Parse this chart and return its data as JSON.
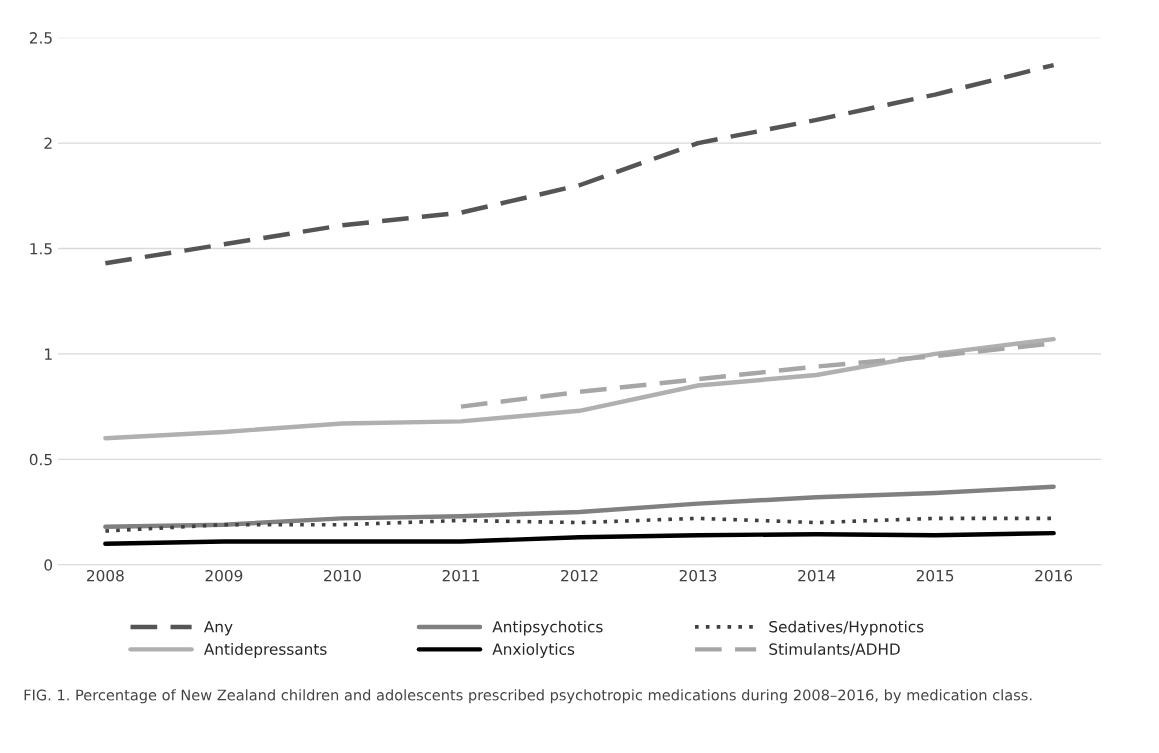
{
  "chart_data": {
    "type": "line",
    "categories": [
      "2008",
      "2009",
      "2010",
      "2011",
      "2012",
      "2013",
      "2014",
      "2015",
      "2016"
    ],
    "series": [
      {
        "name": "Any",
        "color": "#555555",
        "line_style": "dashed",
        "values": [
          1.43,
          1.52,
          1.61,
          1.67,
          1.8,
          2.0,
          2.11,
          2.23,
          2.37
        ]
      },
      {
        "name": "Antidepressants",
        "color": "#b0b0b0",
        "line_style": "solid",
        "values": [
          0.6,
          0.63,
          0.67,
          0.68,
          0.73,
          0.85,
          0.9,
          1.0,
          1.07
        ]
      },
      {
        "name": "Antipsychotics",
        "color": "#808080",
        "line_style": "solid",
        "values": [
          0.18,
          0.19,
          0.22,
          0.23,
          0.25,
          0.29,
          0.32,
          0.34,
          0.37
        ]
      },
      {
        "name": "Anxiolytics",
        "color": "#000000",
        "line_style": "solid",
        "values": [
          0.1,
          0.11,
          0.11,
          0.11,
          0.13,
          0.14,
          0.145,
          0.14,
          0.15
        ]
      },
      {
        "name": "Sedatives/Hypnotics",
        "color": "#404040",
        "line_style": "dotted",
        "values": [
          0.16,
          0.19,
          0.19,
          0.21,
          0.2,
          0.22,
          0.2,
          0.22,
          0.22
        ]
      },
      {
        "name": "Stimulants/ADHD",
        "color": "#a6a6a6",
        "line_style": "dashed",
        "values": [
          null,
          null,
          null,
          0.75,
          0.82,
          0.88,
          0.94,
          0.99,
          1.05
        ]
      }
    ],
    "ylim": [
      0,
      2.5
    ],
    "yticks": [
      0,
      0.5,
      1,
      1.5,
      2,
      2.5
    ],
    "grid": "y",
    "legend": "bottom",
    "marker": "none",
    "annotations": [
      "FIG. 1. Percentage of New Zealand children and adolescents prescribed psychotropic medications during 2008–2016, by medication class."
    ]
  }
}
